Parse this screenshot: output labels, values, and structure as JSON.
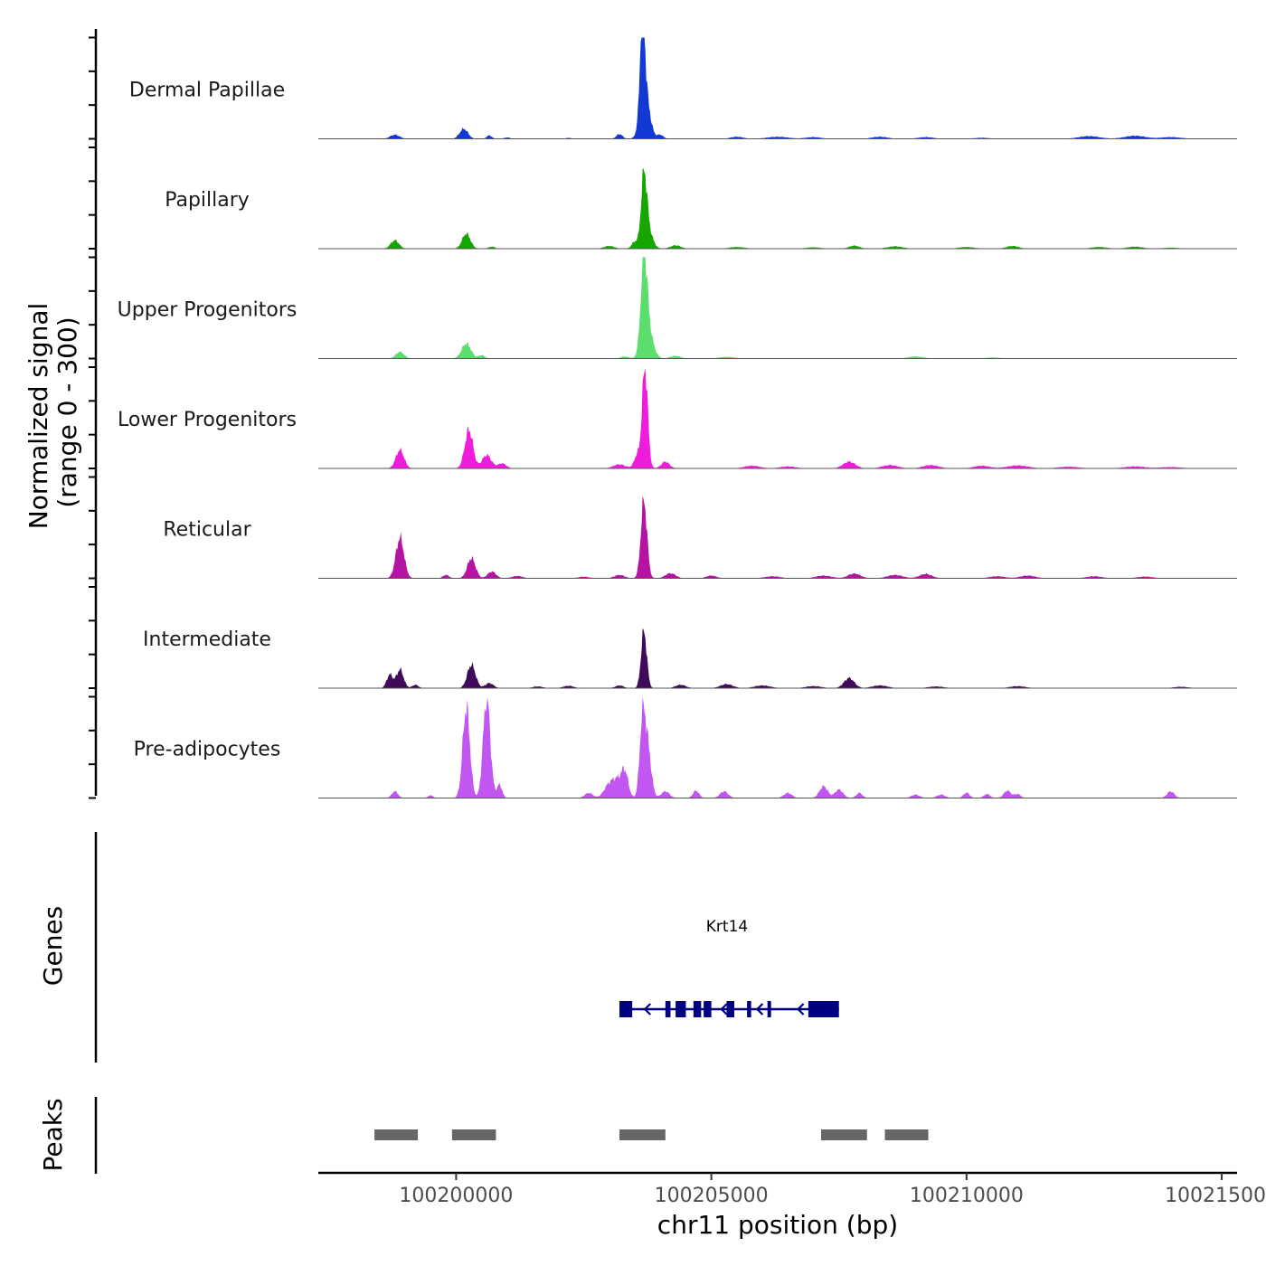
{
  "chart_data": {
    "type": "area",
    "title": "",
    "ylabel_line1": "Normalized signal",
    "ylabel_line2": "(range 0 - 300)",
    "xlabel": "chr11 position (bp)",
    "xlim": [
      100197300,
      100215300
    ],
    "ylim": [
      0,
      300
    ],
    "x_ticks": [
      100200000,
      100205000,
      100210000,
      100215000
    ],
    "x_tick_labels": [
      "100200000",
      "100205000",
      "100210000",
      "100215000"
    ],
    "series": [
      {
        "name": "Dermal Papillae",
        "color": "#1339d4",
        "peaks": [
          [
            100198800,
            12,
            90
          ],
          [
            100200150,
            30,
            80
          ],
          [
            100200650,
            10,
            50
          ],
          [
            100201000,
            4,
            60
          ],
          [
            100202200,
            3,
            50
          ],
          [
            100203200,
            14,
            60
          ],
          [
            100203650,
            280,
            45
          ],
          [
            100203700,
            140,
            90
          ],
          [
            100204000,
            12,
            60
          ],
          [
            100205500,
            6,
            120
          ],
          [
            100206300,
            6,
            200
          ],
          [
            100207000,
            5,
            150
          ],
          [
            100208300,
            6,
            150
          ],
          [
            100209200,
            5,
            150
          ],
          [
            100210300,
            3,
            150
          ],
          [
            100212400,
            8,
            200
          ],
          [
            100213300,
            9,
            200
          ],
          [
            100214000,
            5,
            200
          ]
        ]
      },
      {
        "name": "Papillary",
        "color": "#15a600",
        "peaks": [
          [
            100198800,
            25,
            80
          ],
          [
            100200200,
            45,
            80
          ],
          [
            100200700,
            6,
            60
          ],
          [
            100203000,
            8,
            100
          ],
          [
            100203500,
            20,
            60
          ],
          [
            100203680,
            190,
            55
          ],
          [
            100203750,
            60,
            90
          ],
          [
            100204300,
            10,
            100
          ],
          [
            100205500,
            5,
            150
          ],
          [
            100207000,
            4,
            150
          ],
          [
            100207800,
            9,
            100
          ],
          [
            100208600,
            7,
            150
          ],
          [
            100210000,
            5,
            150
          ],
          [
            100210900,
            8,
            120
          ],
          [
            100212600,
            5,
            150
          ],
          [
            100213300,
            6,
            150
          ],
          [
            100214000,
            3,
            150
          ]
        ]
      },
      {
        "name": "Upper Progenitors",
        "color": "#5cde6c",
        "peaks": [
          [
            100198900,
            20,
            80
          ],
          [
            100200200,
            45,
            90
          ],
          [
            100200500,
            10,
            60
          ],
          [
            100203300,
            6,
            80
          ],
          [
            100203680,
            250,
            60
          ],
          [
            100203750,
            90,
            100
          ],
          [
            100204300,
            8,
            100
          ],
          [
            100205300,
            5,
            150
          ],
          [
            100209000,
            6,
            150
          ],
          [
            100210500,
            3,
            150
          ]
        ]
      },
      {
        "name": "Lower Progenitors",
        "color": "#f01cdc",
        "peaks": [
          [
            100198900,
            55,
            80
          ],
          [
            100200250,
            115,
            80
          ],
          [
            100200600,
            40,
            90
          ],
          [
            100200900,
            15,
            80
          ],
          [
            100203200,
            12,
            120
          ],
          [
            100203550,
            40,
            60
          ],
          [
            100203700,
            300,
            55
          ],
          [
            100204100,
            20,
            80
          ],
          [
            100205800,
            8,
            150
          ],
          [
            100206500,
            6,
            150
          ],
          [
            100207700,
            20,
            120
          ],
          [
            100208500,
            10,
            150
          ],
          [
            100209300,
            10,
            150
          ],
          [
            100210300,
            8,
            150
          ],
          [
            100211000,
            9,
            200
          ],
          [
            100212000,
            5,
            200
          ],
          [
            100213300,
            6,
            200
          ],
          [
            100214000,
            4,
            200
          ]
        ]
      },
      {
        "name": "Reticular",
        "color": "#b413a4",
        "peaks": [
          [
            100198900,
            120,
            80
          ],
          [
            100199800,
            10,
            60
          ],
          [
            100200300,
            60,
            80
          ],
          [
            100200700,
            20,
            80
          ],
          [
            100201200,
            7,
            100
          ],
          [
            100202500,
            5,
            100
          ],
          [
            100203200,
            10,
            100
          ],
          [
            100203680,
            230,
            60
          ],
          [
            100204200,
            15,
            100
          ],
          [
            100205000,
            8,
            100
          ],
          [
            100206200,
            6,
            150
          ],
          [
            100207200,
            8,
            150
          ],
          [
            100207800,
            14,
            120
          ],
          [
            100208600,
            10,
            150
          ],
          [
            100209200,
            13,
            120
          ],
          [
            100210600,
            6,
            150
          ],
          [
            100211200,
            8,
            150
          ],
          [
            100212500,
            6,
            150
          ],
          [
            100213500,
            5,
            150
          ]
        ]
      },
      {
        "name": "Intermediate",
        "color": "#3f0a5a",
        "peaks": [
          [
            100198700,
            40,
            60
          ],
          [
            100198900,
            55,
            70
          ],
          [
            100199200,
            10,
            60
          ],
          [
            100200300,
            70,
            80
          ],
          [
            100200650,
            15,
            80
          ],
          [
            100201600,
            5,
            100
          ],
          [
            100202200,
            7,
            100
          ],
          [
            100203200,
            8,
            80
          ],
          [
            100203680,
            170,
            55
          ],
          [
            100204400,
            10,
            100
          ],
          [
            100205300,
            12,
            120
          ],
          [
            100206000,
            8,
            150
          ],
          [
            100207000,
            6,
            150
          ],
          [
            100207700,
            30,
            100
          ],
          [
            100208300,
            8,
            150
          ],
          [
            100209400,
            5,
            150
          ],
          [
            100211000,
            6,
            150
          ],
          [
            100214200,
            4,
            150
          ]
        ]
      },
      {
        "name": "Pre-adipocytes",
        "color": "#c157f0",
        "peaks": [
          [
            100198800,
            20,
            60
          ],
          [
            100199500,
            8,
            50
          ],
          [
            100200200,
            270,
            70
          ],
          [
            100200600,
            300,
            70
          ],
          [
            100200850,
            40,
            50
          ],
          [
            100202600,
            15,
            80
          ],
          [
            100203000,
            40,
            100
          ],
          [
            100203300,
            80,
            70
          ],
          [
            100203150,
            40,
            80
          ],
          [
            100203650,
            210,
            55
          ],
          [
            100203750,
            150,
            70
          ],
          [
            100204100,
            20,
            80
          ],
          [
            100204700,
            22,
            60
          ],
          [
            100205250,
            20,
            80
          ],
          [
            100206500,
            15,
            80
          ],
          [
            100207200,
            35,
            80
          ],
          [
            100207500,
            25,
            80
          ],
          [
            100207900,
            15,
            60
          ],
          [
            100209000,
            10,
            80
          ],
          [
            100209500,
            10,
            80
          ],
          [
            100210000,
            16,
            60
          ],
          [
            100210400,
            12,
            60
          ],
          [
            100210800,
            22,
            70
          ],
          [
            100211000,
            12,
            60
          ],
          [
            100214000,
            20,
            70
          ]
        ]
      }
    ],
    "genes_track": {
      "label": "Genes",
      "gene_name": "Krt14",
      "strand": "-",
      "color": "#000080",
      "start": 100203200,
      "end": 100207500,
      "exons": [
        [
          100203200,
          100203450
        ],
        [
          100204100,
          100204200
        ],
        [
          100204300,
          100204500
        ],
        [
          100204650,
          100204800
        ],
        [
          100204850,
          100205000
        ],
        [
          100205300,
          100205450
        ],
        [
          100205700,
          100205780
        ],
        [
          100206100,
          100206170
        ],
        [
          100206900,
          100207500
        ]
      ],
      "arrows": [
        100203700,
        100205200,
        100205900,
        100206700
      ]
    },
    "peaks_track": {
      "label": "Peaks",
      "color": "#666666",
      "regions": [
        [
          100198400,
          100199250
        ],
        [
          100199920,
          100200780
        ],
        [
          100203200,
          100204100
        ],
        [
          100207150,
          100208050
        ],
        [
          100208400,
          100209250
        ]
      ]
    }
  }
}
